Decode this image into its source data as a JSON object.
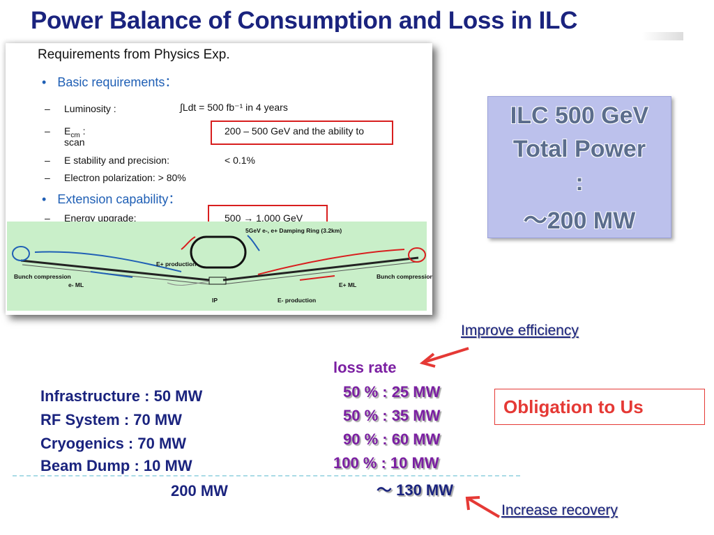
{
  "title": "Power Balance of Consumption and Loss in ILC",
  "slide": {
    "heading": "Requirements from Physics  Exp.",
    "basic_requirements": "Basic requirements：",
    "rows": [
      {
        "label": "Luminosity  :",
        "value": "∫Ldt = 500 fb⁻¹ in 4 years"
      },
      {
        "label_main": "E",
        "label_sub": "cm",
        "label_rest": " :",
        "label_line2": "scan",
        "value": "200 – 500 GeV and the ability to"
      },
      {
        "label": "E stability and precision:",
        "value": "< 0.1%"
      },
      {
        "label": "Electron polarization:   > 80%",
        "value": ""
      }
    ],
    "extension_capability": "Extension capability：",
    "energy_upgrade": {
      "label": "Energy upgrade:",
      "value": "500  → 1,000 GeV"
    },
    "dash": "–",
    "bullet": "•",
    "diagram_labels": {
      "damping_ring": "5GeV e-, e+ Damping Ring (3.2km)",
      "e_plus_production": "E+ production",
      "bunch_compression_left": "Bunch compression",
      "bunch_compression_right": "Bunch compression",
      "e_minus_ml": "e- ML",
      "e_plus_ml": "E+ ML",
      "ip": "IP",
      "e_minus_production": "E- production"
    }
  },
  "ilc_box": {
    "lines": [
      "ILC 500 GeV",
      "Total Power",
      ":",
      "～200 MW"
    ]
  },
  "improve_efficiency": "Improve efficiency",
  "loss": {
    "heading": "loss rate",
    "rows": [
      "50 % : 25 MW",
      "50 % : 35 MW",
      "90 % : 60 MW",
      "100 % : 10 MW"
    ],
    "total": "～ 130 MW"
  },
  "infrastructure": {
    "rows": [
      "Infrastructure : 50 MW",
      "RF System : 70 MW",
      "Cryogenics : 70 MW",
      "Beam Dump : 10 MW"
    ],
    "total": "200 MW"
  },
  "obligation": "Obligation to Us",
  "increase_recovery": "Increase recovery",
  "colors": {
    "title": "#1a237e",
    "loss": "#7b1fa2",
    "red": "#e53935",
    "ilc_box": "#bcc1ec",
    "diagram_bg": "#c9efc9"
  }
}
